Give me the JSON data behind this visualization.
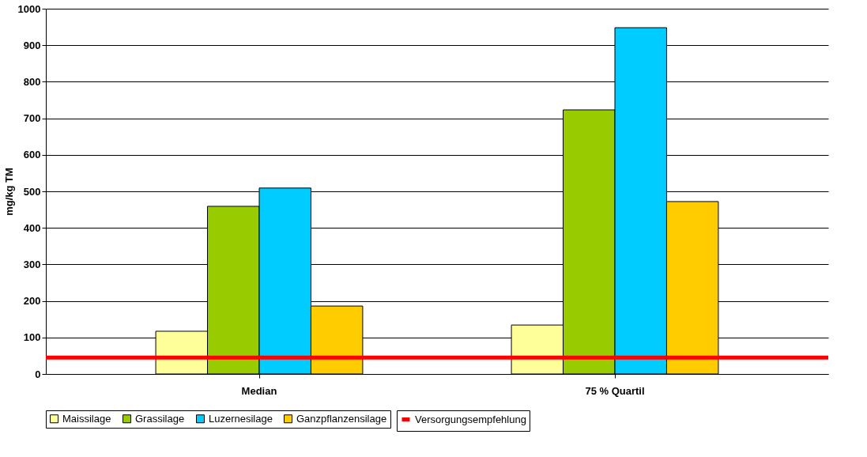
{
  "chart_data": {
    "type": "bar",
    "ylabel": "mg/kg TM",
    "categories": [
      "Median",
      "75 % Quartil"
    ],
    "series": [
      {
        "name": "Maissilage",
        "color": "#ffff99",
        "values": [
          117,
          134
        ]
      },
      {
        "name": "Grassilage",
        "color": "#99cc00",
        "values": [
          459,
          723
        ]
      },
      {
        "name": "Luzernesilage",
        "color": "#00ccff",
        "values": [
          509,
          948
        ]
      },
      {
        "name": "Ganzpflanzensilage",
        "color": "#ffcc00",
        "values": [
          186,
          472
        ]
      }
    ],
    "ref_lines": [
      {
        "axis": "y",
        "value": 45,
        "label": "Versorgungsempfehlung",
        "color": "#ff0000"
      }
    ],
    "ylim": [
      0,
      1000
    ],
    "yticks": [
      0,
      100,
      200,
      300,
      400,
      500,
      600,
      700,
      800,
      900,
      1000
    ],
    "grid": "y",
    "legend": "bottom"
  }
}
